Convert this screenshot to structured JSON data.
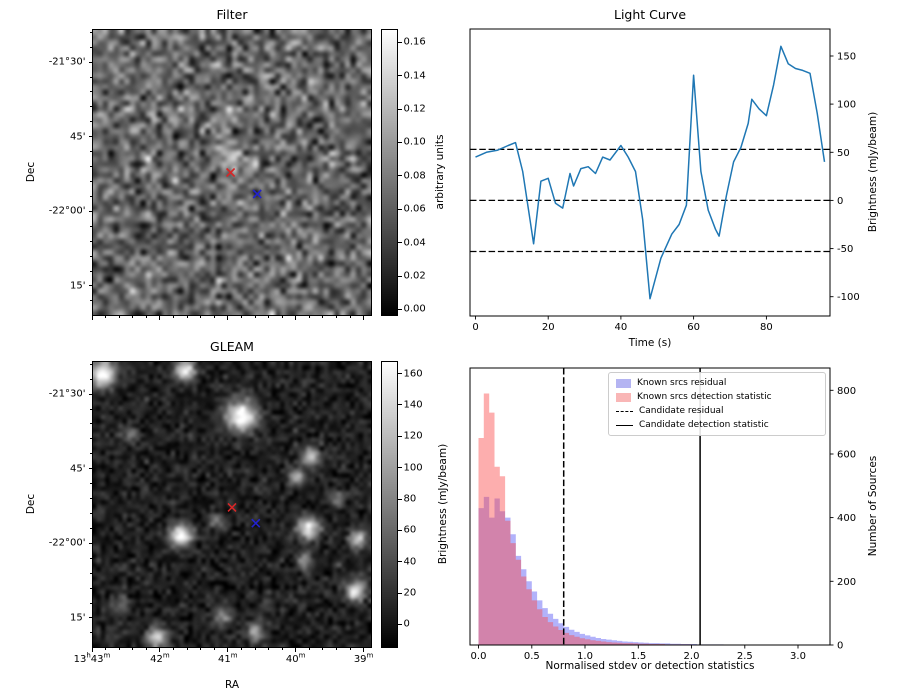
{
  "figure": {
    "background": "#ffffff"
  },
  "chart_data": [
    {
      "id": "filter",
      "type": "heatmap",
      "title": "Filter",
      "ylabel": "Dec",
      "yticks": {
        "labels": [
          "-21°30'",
          "45'",
          "-22°00'",
          "15'"
        ],
        "fracs": [
          0.115,
          0.375,
          0.635,
          0.895
        ]
      },
      "xticks": {
        "labels": [],
        "fracs": [
          0.0,
          0.2425,
          0.485,
          0.7275,
          0.97
        ]
      },
      "colorbar": {
        "label": "arbitrary units",
        "tick_labels": [
          "0.00",
          "0.02",
          "0.04",
          "0.06",
          "0.08",
          "0.10",
          "0.12",
          "0.14",
          "0.16"
        ],
        "tick_values": [
          0,
          0.02,
          0.04,
          0.06,
          0.08,
          0.1,
          0.12,
          0.14,
          0.16
        ],
        "vmin": -0.004,
        "vmax": 0.168
      },
      "noise": {
        "seed": 12,
        "grid": 52,
        "mean": 0.066,
        "sigma": 0.026
      },
      "sources": [
        {
          "x": 0.49,
          "y": 0.43,
          "amp": 0.05,
          "sigma": 0.035
        },
        {
          "x": 0.5,
          "y": 0.52,
          "amp": 0.035,
          "sigma": 0.028
        },
        {
          "x": 0.47,
          "y": 0.3,
          "amp": 0.03,
          "sigma": 0.03
        }
      ],
      "markers": [
        {
          "name": "candidate-marker-red",
          "symbol": "x",
          "color": "#d62728",
          "x": 0.495,
          "y": 0.5
        },
        {
          "name": "reference-marker-blue",
          "symbol": "x",
          "color": "#2323cc",
          "x": 0.59,
          "y": 0.575
        }
      ]
    },
    {
      "id": "light_curve",
      "type": "line",
      "title": "Light Curve",
      "xlabel": "Time (s)",
      "ylabel": "Brightness (mJy/beam)",
      "xlim": [
        -1.5,
        97.5
      ],
      "ylim": [
        -120,
        178
      ],
      "xticks": [
        0,
        20,
        40,
        60,
        80
      ],
      "yticks": [
        -100,
        -50,
        0,
        50,
        100,
        150
      ],
      "hlines": [
        {
          "y": 53,
          "style": "dashed"
        },
        {
          "y": 0,
          "style": "dashed"
        },
        {
          "y": -53,
          "style": "dashed"
        }
      ],
      "series": [
        {
          "name": "brightness",
          "color": "#1f77b4",
          "x": [
            0,
            3,
            6,
            9,
            11,
            13,
            15,
            16,
            18,
            20,
            22,
            24,
            26,
            27,
            29,
            31,
            33,
            35,
            37,
            40,
            42,
            44,
            46,
            48,
            51,
            54,
            56,
            58,
            60,
            62,
            64,
            66,
            67,
            69,
            71,
            73,
            75,
            76,
            78,
            80,
            82,
            84,
            86,
            88,
            90,
            92,
            94,
            96
          ],
          "y": [
            45,
            50,
            52,
            57,
            60,
            30,
            -20,
            -45,
            20,
            23,
            -3,
            -8,
            28,
            15,
            33,
            35,
            28,
            45,
            42,
            57,
            45,
            30,
            -20,
            -102,
            -60,
            -35,
            -25,
            -5,
            130,
            30,
            -10,
            -30,
            -37,
            5,
            40,
            55,
            80,
            105,
            95,
            88,
            120,
            160,
            142,
            137,
            135,
            132,
            90,
            40
          ]
        }
      ]
    },
    {
      "id": "gleam",
      "type": "heatmap",
      "title": "GLEAM",
      "xlabel": "RA",
      "ylabel": "Dec",
      "yticks": {
        "labels": [
          "-21°30'",
          "45'",
          "-22°00'",
          "15'"
        ],
        "fracs": [
          0.115,
          0.375,
          0.635,
          0.895
        ]
      },
      "xticks": {
        "labels": [
          "13h43m",
          "42m",
          "41m",
          "40m",
          "39m"
        ],
        "fracs": [
          0.0,
          0.2425,
          0.485,
          0.7275,
          0.97
        ]
      },
      "colorbar": {
        "label": "Brightness (mJy/beam)",
        "tick_labels": [
          "0",
          "20",
          "40",
          "60",
          "80",
          "100",
          "120",
          "140",
          "160"
        ],
        "tick_values": [
          0,
          20,
          40,
          60,
          80,
          100,
          120,
          140,
          160
        ],
        "vmin": -15,
        "vmax": 168
      },
      "noise": {
        "seed": 99,
        "grid": 64,
        "mean": 8,
        "sigma": 13
      },
      "sources": [
        {
          "x": 0.03,
          "y": 0.04,
          "amp": 170,
          "sigma": 0.032
        },
        {
          "x": 0.325,
          "y": 0.025,
          "amp": 150,
          "sigma": 0.026
        },
        {
          "x": 0.525,
          "y": 0.185,
          "amp": 185,
          "sigma": 0.036
        },
        {
          "x": 0.13,
          "y": 0.25,
          "amp": 55,
          "sigma": 0.024
        },
        {
          "x": 0.775,
          "y": 0.325,
          "amp": 135,
          "sigma": 0.021
        },
        {
          "x": 0.725,
          "y": 0.395,
          "amp": 120,
          "sigma": 0.019
        },
        {
          "x": 0.31,
          "y": 0.6,
          "amp": 170,
          "sigma": 0.027
        },
        {
          "x": 0.765,
          "y": 0.575,
          "amp": 160,
          "sigma": 0.027
        },
        {
          "x": 0.945,
          "y": 0.615,
          "amp": 115,
          "sigma": 0.022
        },
        {
          "x": 0.75,
          "y": 0.69,
          "amp": 95,
          "sigma": 0.019
        },
        {
          "x": 0.935,
          "y": 0.795,
          "amp": 150,
          "sigma": 0.025
        },
        {
          "x": 0.225,
          "y": 0.955,
          "amp": 135,
          "sigma": 0.025
        },
        {
          "x": 0.46,
          "y": 0.885,
          "amp": 75,
          "sigma": 0.021
        },
        {
          "x": 0.575,
          "y": 0.94,
          "amp": 95,
          "sigma": 0.022
        },
        {
          "x": 0.1,
          "y": 0.84,
          "amp": 55,
          "sigma": 0.02
        },
        {
          "x": 0.44,
          "y": 0.55,
          "amp": 70,
          "sigma": 0.019
        },
        {
          "x": 0.865,
          "y": 0.475,
          "amp": 60,
          "sigma": 0.018
        }
      ],
      "markers": [
        {
          "name": "candidate-marker-red",
          "symbol": "x",
          "color": "#d62728",
          "x": 0.5,
          "y": 0.51
        },
        {
          "name": "reference-marker-blue",
          "symbol": "x",
          "color": "#2323cc",
          "x": 0.585,
          "y": 0.565
        }
      ]
    },
    {
      "id": "histogram",
      "type": "histogram",
      "xlabel": "Normalised stdev or detection statistics",
      "ylabel": "Number of Sources",
      "xlim": [
        -0.08,
        3.3
      ],
      "ylim": [
        0,
        870
      ],
      "xticks": {
        "labels": [
          "0.0",
          "0.5",
          "1.0",
          "1.5",
          "2.0",
          "2.5",
          "3.0"
        ],
        "values": [
          0,
          0.5,
          1,
          1.5,
          2,
          2.5,
          3
        ]
      },
      "yticks": [
        0,
        200,
        400,
        600,
        800
      ],
      "bin_start": 0,
      "bin_width": 0.05,
      "series": [
        {
          "name": "Known srcs residual",
          "fill": "rgba(85,85,245,0.45)",
          "counts": [
            430,
            465,
            400,
            460,
            420,
            400,
            348,
            280,
            238,
            200,
            168,
            140,
            116,
            98,
            82,
            68,
            57,
            48,
            41,
            35,
            30,
            26,
            22,
            19,
            17,
            15,
            13,
            11,
            10,
            9,
            8,
            7,
            6,
            6,
            5,
            5,
            4,
            4,
            3,
            3,
            3,
            2,
            2,
            2,
            2,
            2,
            1,
            1,
            1,
            1,
            1,
            1,
            1,
            0,
            1,
            0,
            1,
            0,
            1,
            0,
            0,
            1,
            0,
            0,
            0,
            1
          ]
        },
        {
          "name": "Known srcs detection statistic",
          "fill": "rgba(250,75,75,0.45)",
          "counts": [
            650,
            790,
            730,
            560,
            530,
            390,
            320,
            268,
            215,
            175,
            140,
            112,
            88,
            72,
            58,
            47,
            38,
            31,
            26,
            21,
            18,
            15,
            13,
            11,
            9,
            8,
            7,
            6,
            6,
            5,
            4,
            4,
            3,
            3,
            3,
            2,
            2,
            2,
            2,
            2,
            1,
            1,
            1,
            1,
            1,
            1,
            1,
            1,
            0,
            1,
            0,
            1,
            0,
            0,
            1,
            0,
            0,
            1,
            0,
            0,
            1,
            0,
            0,
            0,
            0,
            1
          ]
        }
      ],
      "vlines": [
        {
          "name": "Candidate residual",
          "x": 0.8,
          "style": "dashed"
        },
        {
          "name": "Candidate detection statistic",
          "x": 2.08,
          "style": "solid"
        }
      ],
      "legend": [
        {
          "label": "Known srcs residual",
          "swatch": "patch",
          "color": "#b4b4f2"
        },
        {
          "label": "Known srcs detection statistic",
          "swatch": "patch",
          "color": "#f9b6b6"
        },
        {
          "label": "Candidate residual",
          "swatch": "dashed-line",
          "color": "#000000"
        },
        {
          "label": "Candidate detection statistic",
          "swatch": "solid-line",
          "color": "#000000"
        }
      ]
    }
  ]
}
